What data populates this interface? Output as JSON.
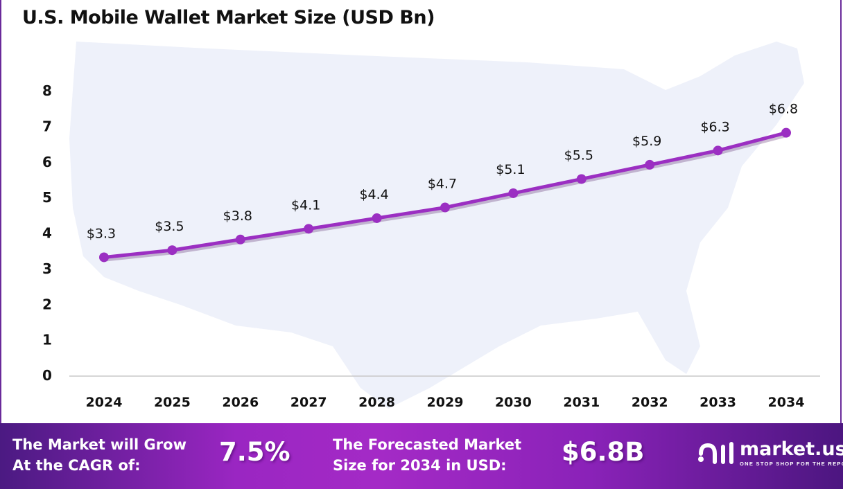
{
  "chart_data": {
    "type": "line",
    "title": "U.S. Mobile Wallet Market Size (USD Bn)",
    "categories": [
      "2024",
      "2025",
      "2026",
      "2027",
      "2028",
      "2029",
      "2030",
      "2031",
      "2032",
      "2033",
      "2034"
    ],
    "values": [
      3.3,
      3.5,
      3.8,
      4.1,
      4.4,
      4.7,
      5.1,
      5.5,
      5.9,
      6.3,
      6.8
    ],
    "data_labels": [
      "$3.3",
      "$3.5",
      "$3.8",
      "$4.1",
      "$4.4",
      "$4.7",
      "$5.1",
      "$5.5",
      "$5.9",
      "$6.3",
      "$6.8"
    ],
    "yticks": [
      "0",
      "1",
      "2",
      "3",
      "4",
      "5",
      "6",
      "7",
      "8"
    ],
    "ylim": [
      0,
      8
    ],
    "xlabel": "",
    "ylabel": "",
    "grid": false,
    "line_color": "#9b2fc2",
    "background": "U.S. map silhouette"
  },
  "footer": {
    "cagr_label_1": "The Market will Grow",
    "cagr_label_2": "At the CAGR of:",
    "cagr_value": "7.5%",
    "forecast_label_1": "The Forecasted Market",
    "forecast_label_2": "Size for 2034 in USD:",
    "forecast_value": "$6.8B"
  },
  "logo": {
    "name": "market.us",
    "tagline": "ONE STOP SHOP FOR THE REPORTS"
  }
}
